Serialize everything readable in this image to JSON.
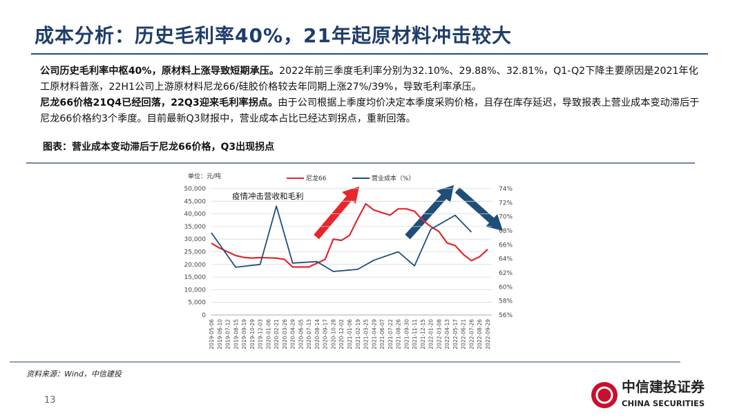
{
  "header": {
    "title": "成本分析：历史毛利率40%，21年起原材料冲击较大"
  },
  "body": {
    "paragraphs": [
      {
        "bold": "公司历史毛利率中枢40%，原材料上涨导致短期承压。",
        "text": "2022年前三季度毛利率分别为32.10%、29.88%、32.81%，Q1-Q2下降主要原因是2021年化工原材料普涨，22H1公司上游原材料尼龙66/硅胶价格较去年同期上涨27%/39%，导致毛利率承压。"
      },
      {
        "bold": "尼龙66价格21Q4已经回落，22Q3迎来毛利率拐点。",
        "text": "由于公司根据上季度均价决定本季度采购价格，且存在库存延迟，导致报表上营业成本变动滞后于尼龙66价格约3个季度。目前最新Q3财报中，营业成本占比已经达到拐点，重新回落。"
      }
    ]
  },
  "figure": {
    "caption": "图表：营业成本变动滞后于尼龙66价格，Q3出现拐点"
  },
  "chart_data": {
    "type": "line",
    "unit_label": "单位：元/吨",
    "annotation": "疫情冲击营收和毛利",
    "categories": [
      "2019-05-06",
      "2019-06-10",
      "2019-07-12",
      "2019-08-15",
      "2019-09-19",
      "2019-10-29",
      "2019-12-03",
      "2020-01-06",
      "2020-02-21",
      "2020-03-26",
      "2020-04-29",
      "2020-06-05",
      "2020-07-13",
      "2020-08-14",
      "2020-09-17",
      "2020-10-28",
      "2020-12-02",
      "2021-01-06",
      "2021-02-19",
      "2021-03-25",
      "2021-04-29",
      "2021-06-07",
      "2021-07-22",
      "2021-08-26",
      "2021-09-30",
      "2021-11-11",
      "2021-12-15",
      "2022-01-20",
      "2022-03-08",
      "2022-04-13",
      "2022-05-17",
      "2022-06-21",
      "2022-07-26",
      "2022-08-26",
      "2022-09-29"
    ],
    "series": [
      {
        "name": "尼龙66",
        "color": "#e3262b",
        "values": [
          28400,
          26500,
          25000,
          23500,
          22800,
          22500,
          22700,
          22600,
          22500,
          22000,
          19000,
          19000,
          19000,
          20500,
          22000,
          30000,
          29500,
          31500,
          38000,
          44000,
          41500,
          40500,
          39500,
          42000,
          42000,
          41000,
          37500,
          35000,
          33000,
          28500,
          27500,
          24000,
          21500,
          23000,
          26000
        ]
      },
      {
        "name": "营业成本（%）",
        "color": "#1f4e79",
        "axis": "y2",
        "x": [
          "2019-05-06",
          "2019-08-15",
          "2019-12-03",
          "2020-02-21",
          "2020-04-29",
          "2020-08-14",
          "2020-10-28",
          "2021-02-19",
          "2021-04-29",
          "2021-08-26",
          "2021-11-11",
          "2022-01-20",
          "2022-05-17",
          "2022-07-26"
        ],
        "values": [
          67.7,
          62.8,
          63.2,
          71.5,
          63.4,
          63.6,
          62.2,
          62.5,
          63.8,
          65.0,
          63.0,
          68.2,
          70.2,
          67.8
        ]
      }
    ],
    "ylim": [
      0,
      50000
    ],
    "yticks": [
      0,
      {
        "value": 5000,
        "label": "5,000"
      },
      {
        "value": 10000,
        "label": "10,000"
      },
      {
        "value": 15000,
        "label": "15,000"
      },
      {
        "value": 20000,
        "label": "20,000"
      },
      {
        "value": 25000,
        "label": "25,000"
      },
      {
        "value": 30000,
        "label": "30,000"
      },
      {
        "value": 35000,
        "label": "35,000"
      },
      {
        "value": 40000,
        "label": "40,000"
      },
      {
        "value": 45000,
        "label": "45,000"
      },
      {
        "value": 50000,
        "label": "50,000"
      }
    ],
    "y2lim": [
      56,
      74
    ],
    "y2ticks": [
      {
        "value": 56,
        "label": "56%"
      },
      {
        "value": 58,
        "label": "58%"
      },
      {
        "value": 60,
        "label": "60%"
      },
      {
        "value": 62,
        "label": "62%"
      },
      {
        "value": 64,
        "label": "64%"
      },
      {
        "value": 66,
        "label": "66%"
      },
      {
        "value": 68,
        "label": "68%"
      },
      {
        "value": 70,
        "label": "70%"
      },
      {
        "value": 72,
        "label": "72%"
      },
      {
        "value": 74,
        "label": "74%"
      }
    ],
    "grid": true
  },
  "source": "资料来源：Wind，中信建投",
  "page_number": "13",
  "logo": {
    "name": "中信建投证券",
    "english": "CHINA SECURITIES"
  }
}
